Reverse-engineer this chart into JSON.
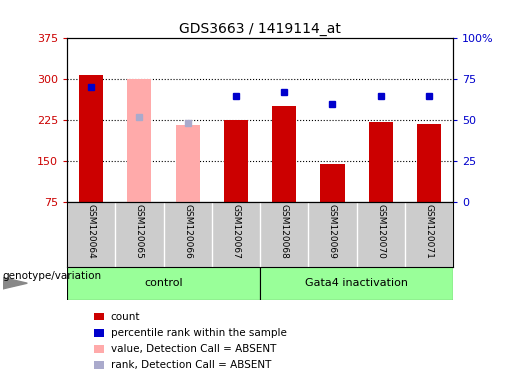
{
  "title": "GDS3663 / 1419114_at",
  "samples": [
    "GSM120064",
    "GSM120065",
    "GSM120066",
    "GSM120067",
    "GSM120068",
    "GSM120069",
    "GSM120070",
    "GSM120071"
  ],
  "count_values": [
    307,
    0,
    0,
    225,
    250,
    145,
    222,
    218
  ],
  "absent_value": [
    0,
    300,
    215,
    0,
    0,
    0,
    0,
    0
  ],
  "percentile_rank": [
    70,
    0,
    0,
    65,
    67,
    60,
    65,
    65
  ],
  "absent_rank": [
    0,
    52,
    48,
    0,
    0,
    0,
    0,
    0
  ],
  "ylim_left": [
    75,
    375
  ],
  "ylim_right": [
    0,
    100
  ],
  "yticks_left": [
    75,
    150,
    225,
    300,
    375
  ],
  "yticks_right": [
    0,
    25,
    50,
    75,
    100
  ],
  "ytick_labels_right": [
    "0",
    "25",
    "50",
    "75",
    "100%"
  ],
  "control_group_idx": [
    0,
    1,
    2,
    3
  ],
  "gata4_group_idx": [
    4,
    5,
    6,
    7
  ],
  "color_red": "#CC0000",
  "color_pink": "#FFAAAA",
  "color_blue": "#0000CC",
  "color_lightblue": "#AAAACC",
  "color_green": "#99FF99",
  "color_gray": "#CCCCCC",
  "bar_width": 0.5,
  "legend_items": [
    "count",
    "percentile rank within the sample",
    "value, Detection Call = ABSENT",
    "rank, Detection Call = ABSENT"
  ]
}
